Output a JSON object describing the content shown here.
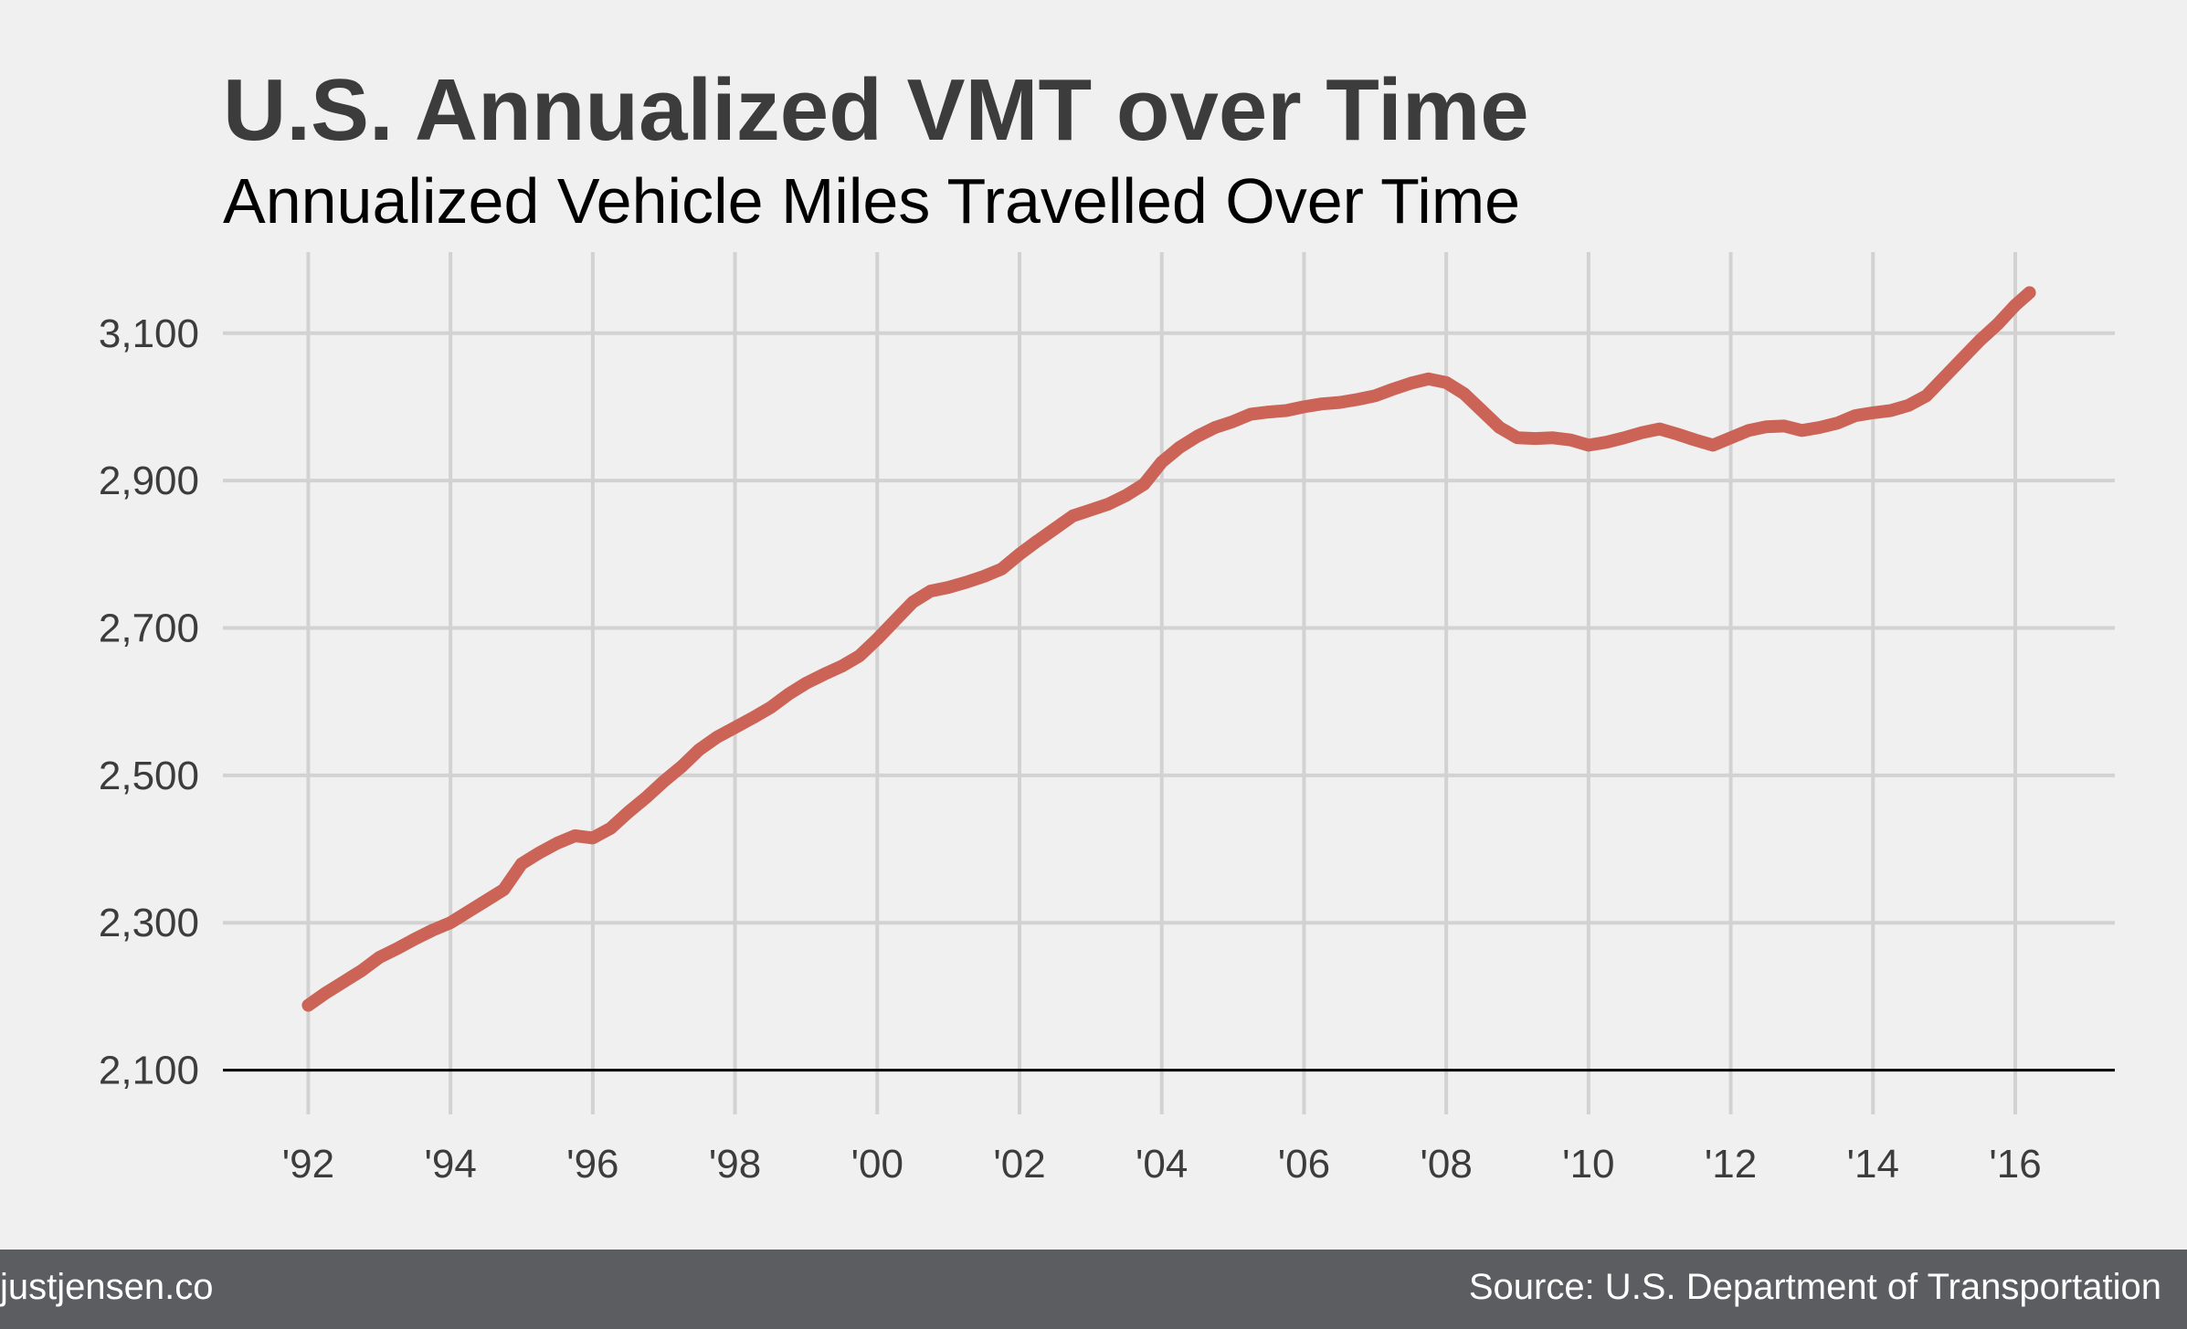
{
  "chart_data": {
    "type": "line",
    "title": "U.S. Annualized VMT over Time",
    "subtitle": "Annualized Vehicle Miles Travelled Over Time",
    "xlabel": "",
    "ylabel": "",
    "xlim": [
      1990.8,
      2017.4
    ],
    "ylim": [
      2040,
      3210
    ],
    "grid": true,
    "legend": "none",
    "line_color": "#cc6357",
    "y_ticks": [
      {
        "value": 2100,
        "label": "2,100"
      },
      {
        "value": 2300,
        "label": "2,300"
      },
      {
        "value": 2500,
        "label": "2,500"
      },
      {
        "value": 2700,
        "label": "2,700"
      },
      {
        "value": 2900,
        "label": "2,900"
      },
      {
        "value": 3100,
        "label": "3,100"
      }
    ],
    "x_ticks": [
      {
        "value": 1992,
        "label": "'92"
      },
      {
        "value": 1994,
        "label": "'94"
      },
      {
        "value": 1996,
        "label": "'96"
      },
      {
        "value": 1998,
        "label": "'98"
      },
      {
        "value": 2000,
        "label": "'00"
      },
      {
        "value": 2002,
        "label": "'02"
      },
      {
        "value": 2004,
        "label": "'04"
      },
      {
        "value": 2006,
        "label": "'06"
      },
      {
        "value": 2008,
        "label": "'08"
      },
      {
        "value": 2010,
        "label": "'10"
      },
      {
        "value": 2012,
        "label": "'12"
      },
      {
        "value": 2014,
        "label": "'14"
      },
      {
        "value": 2016,
        "label": "'16"
      }
    ],
    "x": [
      1992.0,
      1992.25,
      1992.5,
      1992.75,
      1993.0,
      1993.25,
      1993.5,
      1993.75,
      1994.0,
      1994.25,
      1994.5,
      1994.75,
      1995.0,
      1995.25,
      1995.5,
      1995.75,
      1996.0,
      1996.25,
      1996.5,
      1996.75,
      1997.0,
      1997.25,
      1997.5,
      1997.75,
      1998.0,
      1998.25,
      1998.5,
      1998.75,
      1999.0,
      1999.25,
      1999.5,
      1999.75,
      2000.0,
      2000.25,
      2000.5,
      2000.75,
      2001.0,
      2001.25,
      2001.5,
      2001.75,
      2002.0,
      2002.25,
      2002.5,
      2002.75,
      2003.0,
      2003.25,
      2003.5,
      2003.75,
      2004.0,
      2004.25,
      2004.5,
      2004.75,
      2005.0,
      2005.25,
      2005.5,
      2005.75,
      2006.0,
      2006.25,
      2006.5,
      2006.75,
      2007.0,
      2007.25,
      2007.5,
      2007.75,
      2008.0,
      2008.25,
      2008.5,
      2008.75,
      2009.0,
      2009.25,
      2009.5,
      2009.75,
      2010.0,
      2010.25,
      2010.5,
      2010.75,
      2011.0,
      2011.25,
      2011.5,
      2011.75,
      2012.0,
      2012.25,
      2012.5,
      2012.75,
      2013.0,
      2013.25,
      2013.5,
      2013.75,
      2014.0,
      2014.25,
      2014.5,
      2014.75,
      2015.0,
      2015.25,
      2015.5,
      2015.75,
      2016.0,
      2016.2
    ],
    "values": [
      2188,
      2205,
      2220,
      2235,
      2253,
      2265,
      2278,
      2290,
      2300,
      2315,
      2330,
      2345,
      2380,
      2395,
      2408,
      2418,
      2415,
      2428,
      2450,
      2470,
      2492,
      2512,
      2535,
      2552,
      2565,
      2578,
      2592,
      2610,
      2625,
      2637,
      2648,
      2662,
      2685,
      2710,
      2735,
      2750,
      2755,
      2762,
      2770,
      2780,
      2800,
      2818,
      2835,
      2852,
      2860,
      2868,
      2880,
      2895,
      2925,
      2945,
      2960,
      2972,
      2980,
      2990,
      2993,
      2995,
      3000,
      3004,
      3006,
      3010,
      3015,
      3024,
      3032,
      3038,
      3033,
      3018,
      2995,
      2972,
      2958,
      2957,
      2958,
      2955,
      2948,
      2952,
      2958,
      2965,
      2970,
      2963,
      2955,
      2948,
      2958,
      2968,
      2973,
      2974,
      2968,
      2972,
      2978,
      2988,
      2992,
      2995,
      3002,
      3015,
      3040,
      3065,
      3090,
      3112,
      3138,
      3155
    ]
  },
  "footer": {
    "left": "justjensen.co",
    "right": "Source: U.S. Department of Transportation"
  }
}
